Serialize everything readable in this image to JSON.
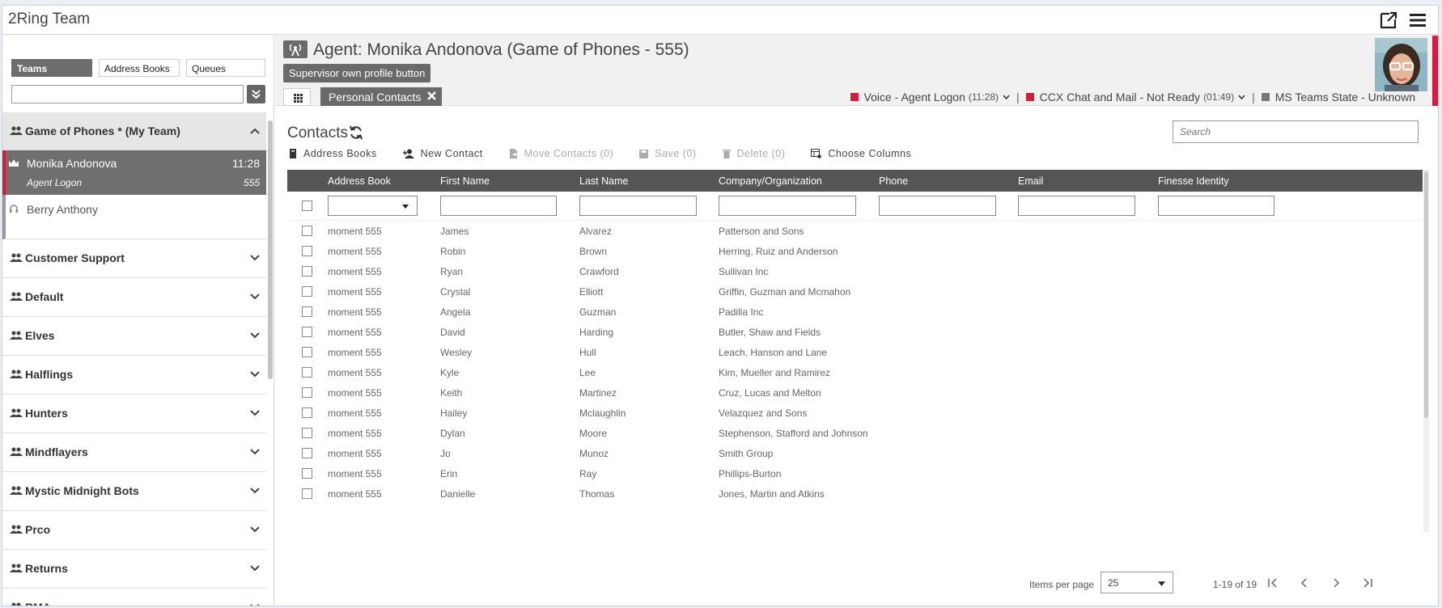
{
  "app": {
    "title": "2Ring Team"
  },
  "sidebar": {
    "tabs": [
      "Teams",
      "Address Books",
      "Queues"
    ],
    "search_value": "",
    "open_team": {
      "label": "Game of Phones * (My Team)",
      "agents": [
        {
          "name": "Monika Andonova",
          "time": "11:28",
          "state": "Agent Logon",
          "ext": "555"
        },
        {
          "name": "Berry Anthony"
        }
      ]
    },
    "teams": [
      "Customer Support",
      "Default",
      "Elves",
      "Halflings",
      "Hunters",
      "Mindflayers",
      "Mystic Midnight Bots",
      "Prco",
      "Returns",
      "RMA"
    ]
  },
  "header": {
    "agent_title": "Agent: Monika Andonova (Game of Phones - 555)",
    "supervisor_button": "Supervisor own profile button",
    "tab_label": "Personal Contacts",
    "status": {
      "voice": "Voice - Agent Logon",
      "voice_time": "(11:28)",
      "chat": "CCX Chat and Mail - Not Ready",
      "chat_time": "(01:49)",
      "teams": "MS Teams State - Unknown"
    },
    "colors": {
      "status_red": "#d81b3c",
      "status_grey": "#777777"
    }
  },
  "contacts": {
    "title": "Contacts",
    "search_placeholder": "Search",
    "toolbar": {
      "address_books": "Address Books",
      "new_contact": "New Contact",
      "move_contacts": "Move Contacts (0)",
      "save": "Save (0)",
      "delete": "Delete (0)",
      "choose_columns": "Choose Columns"
    },
    "columns": [
      "Address Book",
      "First Name",
      "Last Name",
      "Company/Organization",
      "Phone",
      "Email",
      "Finesse Identity"
    ],
    "rows": [
      [
        "moment 555",
        "James",
        "Alvarez",
        "Patterson and Sons"
      ],
      [
        "moment 555",
        "Robin",
        "Brown",
        "Herring, Ruiz and Anderson"
      ],
      [
        "moment 555",
        "Ryan",
        "Crawford",
        "Sullivan Inc"
      ],
      [
        "moment 555",
        "Crystal",
        "Elliott",
        "Griffin, Guzman and Mcmahon"
      ],
      [
        "moment 555",
        "Angela",
        "Guzman",
        "Padilla Inc"
      ],
      [
        "moment 555",
        "David",
        "Harding",
        "Butler, Shaw and Fields"
      ],
      [
        "moment 555",
        "Wesley",
        "Hull",
        "Leach, Hanson and Lane"
      ],
      [
        "moment 555",
        "Kyle",
        "Lee",
        "Kim, Mueller and Ramirez"
      ],
      [
        "moment 555",
        "Keith",
        "Martinez",
        "Cruz, Lucas and Melton"
      ],
      [
        "moment 555",
        "Hailey",
        "Mclaughlin",
        "Velazquez and Sons"
      ],
      [
        "moment 555",
        "Dylan",
        "Moore",
        "Stephenson, Stafford and Johnson"
      ],
      [
        "moment 555",
        "Jo",
        "Munoz",
        "Smith Group"
      ],
      [
        "moment 555",
        "Erin",
        "Ray",
        "Phillips-Burton"
      ],
      [
        "moment 555",
        "Danielle",
        "Thomas",
        "Jones, Martin and Atkins"
      ]
    ],
    "pager": {
      "items_per_page_label": "Items per page",
      "items_per_page": "25",
      "range": "1-19 of 19"
    }
  }
}
